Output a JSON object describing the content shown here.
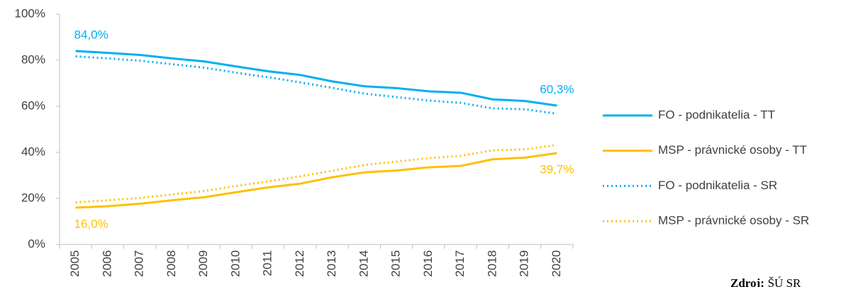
{
  "chart_data": {
    "type": "line",
    "categories": [
      "2005",
      "2006",
      "2007",
      "2008",
      "2009",
      "2010",
      "2011",
      "2012",
      "2013",
      "2014",
      "2015",
      "2016",
      "2017",
      "2018",
      "2019",
      "2020"
    ],
    "series": [
      {
        "name": "FO - podnikatelia - TT",
        "color": "#00b0f0",
        "dash": "solid",
        "values": [
          84.0,
          83.2,
          82.3,
          80.8,
          79.5,
          77.3,
          75.2,
          73.6,
          70.8,
          68.7,
          67.9,
          66.5,
          65.9,
          63.0,
          62.3,
          60.3
        ],
        "value_labels": [
          "84,0%",
          null,
          null,
          null,
          null,
          null,
          null,
          null,
          null,
          null,
          null,
          null,
          null,
          null,
          null,
          "60,3%"
        ]
      },
      {
        "name": "MSP - právnické osoby - TT",
        "color": "#ffc000",
        "dash": "solid",
        "values": [
          16.0,
          16.6,
          17.7,
          19.2,
          20.5,
          22.7,
          24.8,
          26.4,
          29.2,
          31.3,
          32.1,
          33.5,
          34.1,
          37.0,
          37.7,
          39.7
        ],
        "value_labels": [
          "16,0%",
          null,
          null,
          null,
          null,
          null,
          null,
          null,
          null,
          null,
          null,
          null,
          null,
          null,
          null,
          "39,7%"
        ]
      },
      {
        "name": "FO - podnikatelia - SR",
        "color": "#00b0f0",
        "dash": "dotted",
        "values": [
          81.7,
          80.8,
          79.8,
          78.3,
          76.8,
          74.6,
          72.6,
          70.4,
          68.0,
          65.5,
          64.0,
          62.5,
          61.5,
          59.1,
          58.7,
          56.8
        ]
      },
      {
        "name": "MSP - právnické osoby - SR",
        "color": "#ffc000",
        "dash": "dotted",
        "values": [
          18.3,
          19.2,
          20.2,
          21.7,
          23.2,
          25.4,
          27.4,
          29.6,
          32.0,
          34.5,
          36.0,
          37.5,
          38.5,
          40.9,
          41.3,
          43.2
        ]
      }
    ],
    "ylim": [
      0,
      100
    ],
    "yticks": [
      {
        "value": 0,
        "label": "0%"
      },
      {
        "value": 20,
        "label": "20%"
      },
      {
        "value": 40,
        "label": "40%"
      },
      {
        "value": 60,
        "label": "60%"
      },
      {
        "value": 80,
        "label": "80%"
      },
      {
        "value": 100,
        "label": "100%"
      }
    ],
    "grid": false,
    "legend": "right",
    "source": {
      "label": "Zdroj:",
      "text": "ŠÚ SR"
    }
  }
}
